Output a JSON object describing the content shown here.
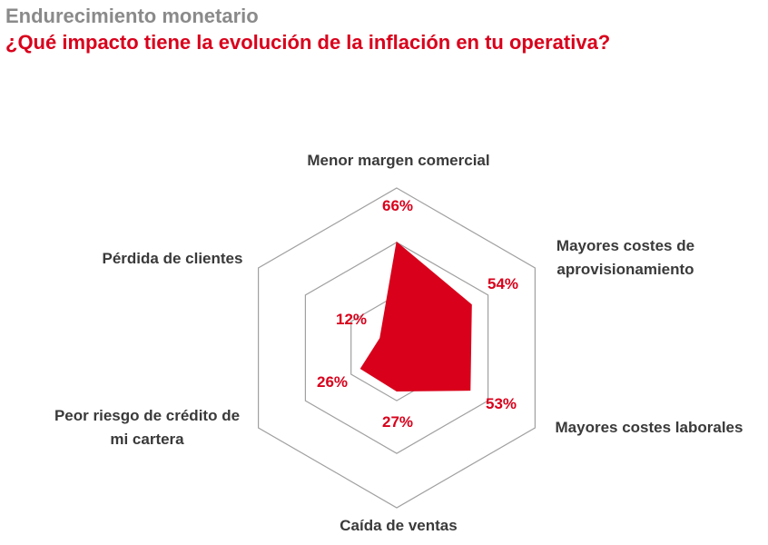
{
  "header": {
    "supertitle": "Endurecimiento monetario",
    "title": "¿Qué impacto tiene la evolución de la inflación en tu operativa?"
  },
  "colors": {
    "accent": "#d9001b",
    "grid": "#a0a0a0",
    "label": "#3a3a3a",
    "supertitle": "#8a8a8a"
  },
  "chart_data": {
    "type": "radar",
    "title": "¿Qué impacto tiene la evolución de la inflación en tu operativa?",
    "categories": [
      [
        "Menor margen comercial"
      ],
      [
        "Mayores costes de",
        "aprovisionamiento"
      ],
      [
        "Mayores costes laborales"
      ],
      [
        "Caída de ventas"
      ],
      [
        "Peor riesgo de crédito de",
        "mi cartera"
      ],
      [
        "Pérdida de clientes"
      ]
    ],
    "values": [
      66,
      54,
      53,
      27,
      26,
      12
    ],
    "value_labels": [
      "66%",
      "54%",
      "53%",
      "27%",
      "26%",
      "12%"
    ],
    "rmax": 100,
    "grid_levels": [
      33,
      66,
      100
    ],
    "unit": "%"
  }
}
